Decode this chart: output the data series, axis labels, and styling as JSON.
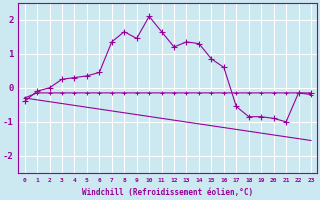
{
  "xlabel": "Windchill (Refroidissement éolien,°C)",
  "bg_color": "#cce8f0",
  "line_color": "#990099",
  "x_ticks": [
    0,
    1,
    2,
    3,
    4,
    5,
    6,
    7,
    8,
    9,
    10,
    11,
    12,
    13,
    14,
    15,
    16,
    17,
    18,
    19,
    20,
    21,
    22,
    23
  ],
  "xlim": [
    -0.5,
    23.5
  ],
  "ylim": [
    -2.5,
    2.5
  ],
  "yticks": [
    -2,
    -1,
    0,
    1,
    2
  ],
  "series1": {
    "x": [
      0,
      1,
      2,
      3,
      4,
      5,
      6,
      7,
      8,
      9,
      10,
      11,
      12,
      13,
      14,
      15,
      16,
      17,
      18,
      19,
      20,
      21,
      22,
      23
    ],
    "y": [
      -0.4,
      -0.1,
      0.0,
      0.25,
      0.3,
      0.35,
      0.45,
      1.35,
      1.65,
      1.45,
      2.1,
      1.65,
      1.2,
      1.35,
      1.3,
      0.85,
      0.6,
      -0.55,
      -0.85,
      -0.85,
      -0.9,
      -1.0,
      -0.15,
      -0.15
    ]
  },
  "series2": {
    "x": [
      0,
      1,
      2,
      3,
      4,
      5,
      6,
      7,
      8,
      9,
      10,
      11,
      12,
      13,
      14,
      15,
      16,
      17,
      18,
      19,
      20,
      21,
      22,
      23
    ],
    "y": [
      -0.3,
      -0.15,
      -0.15,
      -0.15,
      -0.15,
      -0.15,
      -0.15,
      -0.15,
      -0.15,
      -0.15,
      -0.15,
      -0.15,
      -0.15,
      -0.15,
      -0.15,
      -0.15,
      -0.15,
      -0.15,
      -0.15,
      -0.15,
      -0.15,
      -0.15,
      -0.15,
      -0.2
    ]
  },
  "series3": {
    "x": [
      0,
      23
    ],
    "y": [
      -0.3,
      -1.55
    ]
  }
}
